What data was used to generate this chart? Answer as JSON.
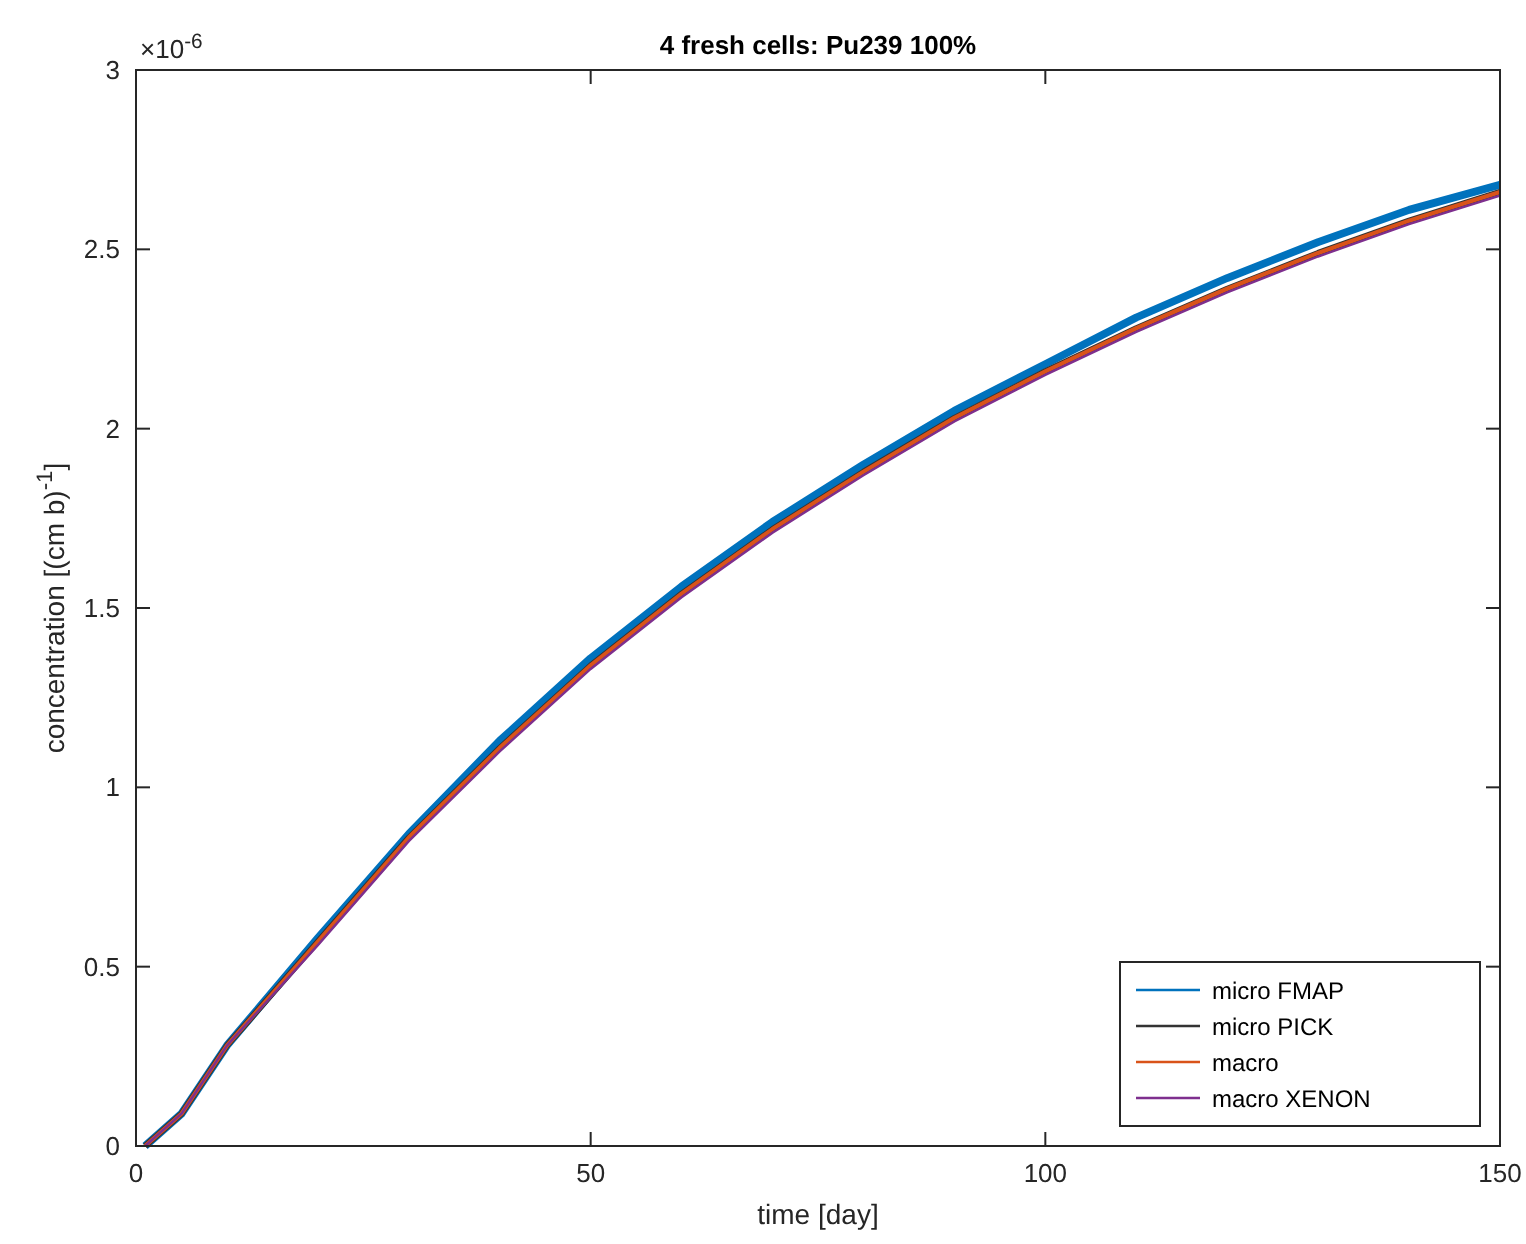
{
  "chart_data": {
    "type": "line",
    "title": "4 fresh cells: Pu239 100%",
    "xlabel": "time [day]",
    "ylabel": "concentration [(cm b)$^{-1}$]",
    "annotations": [
      "×10$^{-6}$"
    ],
    "x": [
      1,
      5,
      10,
      20,
      30,
      40,
      50,
      60,
      70,
      80,
      90,
      100,
      110,
      120,
      130,
      140,
      150
    ],
    "series": [
      {
        "name": "micro FMAP",
        "color": "#0072bd",
        "values": [
          0,
          0.09,
          0.28,
          0.58,
          0.87,
          1.13,
          1.36,
          1.56,
          1.74,
          1.9,
          2.05,
          2.18,
          2.31,
          2.42,
          2.52,
          2.61,
          2.68
        ]
      },
      {
        "name": "micro PICK",
        "color": "#333333",
        "values": [
          0,
          0.09,
          0.28,
          0.57,
          0.86,
          1.11,
          1.34,
          1.54,
          1.72,
          1.88,
          2.03,
          2.16,
          2.28,
          2.39,
          2.49,
          2.58,
          2.66
        ]
      },
      {
        "name": "macro",
        "color": "#d95319",
        "values": [
          0,
          0.09,
          0.28,
          0.57,
          0.86,
          1.11,
          1.34,
          1.54,
          1.72,
          1.88,
          2.03,
          2.16,
          2.28,
          2.39,
          2.49,
          2.58,
          2.66
        ]
      },
      {
        "name": "macro XENON",
        "color": "#7e2f8e",
        "values": [
          0,
          0.09,
          0.28,
          0.56,
          0.85,
          1.1,
          1.33,
          1.53,
          1.71,
          1.87,
          2.02,
          2.15,
          2.27,
          2.38,
          2.48,
          2.57,
          2.65
        ]
      }
    ],
    "xlim": [
      0,
      150
    ],
    "xticks": [
      0,
      50,
      100,
      150
    ],
    "ylim": [
      0,
      3
    ],
    "yticks": [
      0,
      0.5,
      1,
      1.5,
      2,
      2.5,
      3
    ],
    "legend": "bottom right",
    "grid": false,
    "marker": "none",
    "line_style": "solid"
  }
}
